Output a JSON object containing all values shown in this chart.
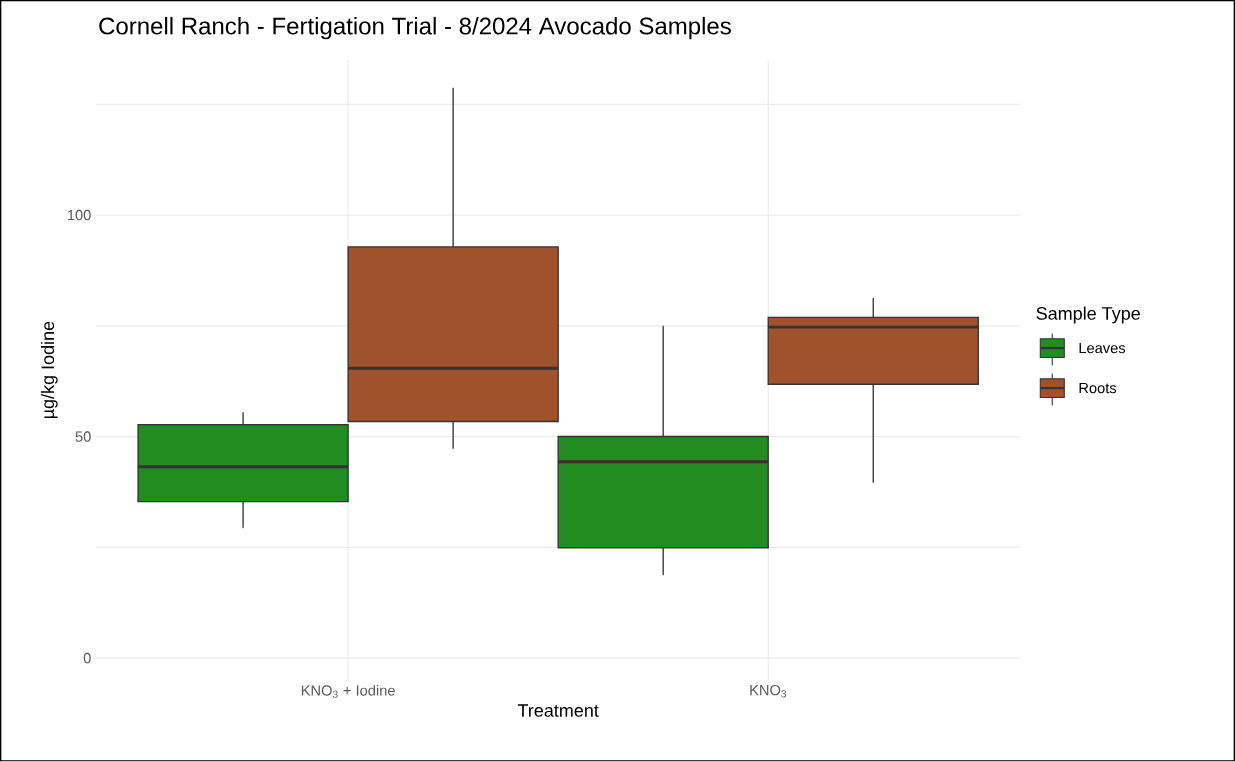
{
  "chart_data": {
    "type": "box",
    "title": "Cornell Ranch - Fertigation Trial - 8/2024 Avocado Samples",
    "xlabel": "Treatment",
    "ylabel": "µg/kg Iodine",
    "legend_title": "Sample Type",
    "categories": [
      "KNO$_{3}$ + Iodine",
      "KNO$_{3}$"
    ],
    "series": [
      {
        "name": "Leaves",
        "color": "#228b22",
        "boxes": [
          {
            "low": 29.4,
            "q1": 35.3,
            "median": 43.2,
            "q3": 52.7,
            "high": 55.4
          },
          {
            "low": 18.8,
            "q1": 24.9,
            "median": 44.3,
            "q3": 50.0,
            "high": 74.9
          }
        ]
      },
      {
        "name": "Roots",
        "color": "#a0522d",
        "boxes": [
          {
            "low": 47.3,
            "q1": 53.4,
            "median": 65.4,
            "q3": 92.8,
            "high": 128.7
          },
          {
            "low": 39.6,
            "q1": 61.8,
            "median": 74.7,
            "q3": 76.9,
            "high": 81.2
          }
        ]
      }
    ],
    "ylim": [
      -5,
      135
    ],
    "yticks": [
      0,
      {
        "value": 25,
        "label": null
      },
      50,
      {
        "value": 75,
        "label": null
      },
      100,
      {
        "value": 125,
        "label": null
      }
    ],
    "grid": true,
    "legend": "right"
  }
}
